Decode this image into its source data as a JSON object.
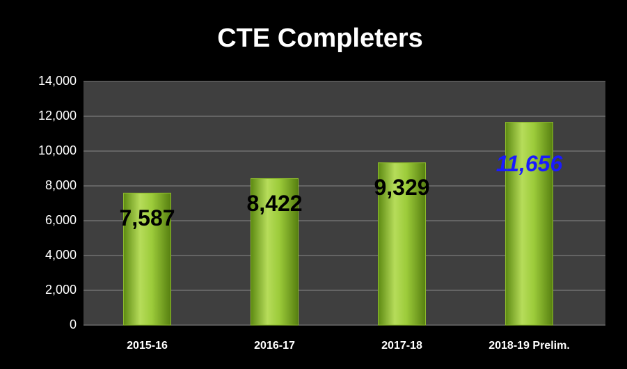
{
  "chart_data": {
    "type": "bar",
    "title": "CTE Completers",
    "categories": [
      "2015-16",
      "2016-17",
      "2017-18",
      "2018-19 Prelim."
    ],
    "values": [
      7587,
      8422,
      9329,
      11656
    ],
    "value_labels": [
      "7,587",
      "8,422",
      "9,329",
      "11,656"
    ],
    "value_label_colors": [
      "#000000",
      "#000000",
      "#000000",
      "#1a1aff"
    ],
    "color": "#8dbb2c",
    "ylim": [
      0,
      14000
    ],
    "yticks": [
      0,
      {
        "value": 2000,
        "label": "2,000"
      },
      {
        "value": 4000,
        "label": "4,000"
      },
      {
        "value": 6000,
        "label": "6,000"
      },
      {
        "value": 8000,
        "label": "8,000"
      },
      {
        "value": 10000,
        "label": "10,000"
      },
      {
        "value": 12000,
        "label": "12,000"
      },
      {
        "value": 14000,
        "label": "14,000"
      }
    ],
    "grid": true
  }
}
